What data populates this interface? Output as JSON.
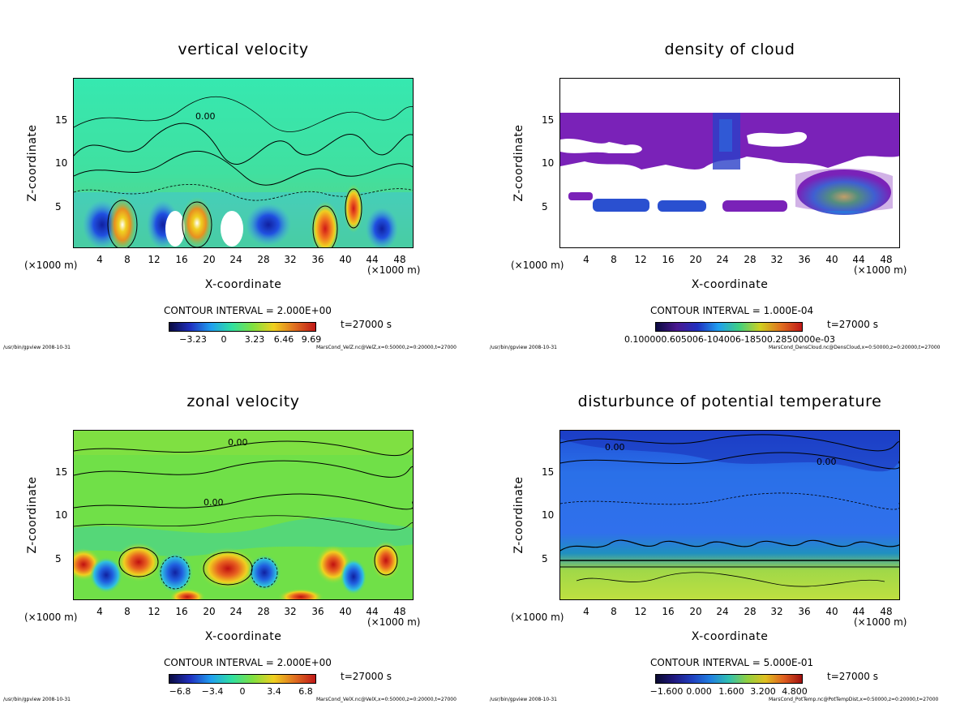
{
  "chart_data": [
    {
      "type": "heatmap",
      "title": "vertical velocity",
      "xlabel": "X-coordinate",
      "ylabel": "Z-coordinate",
      "x_unit_left": "(×1000 m)",
      "x_unit_right": "(×1000 m)",
      "xticks": [
        "4",
        "8",
        "12",
        "16",
        "20",
        "24",
        "28",
        "32",
        "36",
        "40",
        "44",
        "48"
      ],
      "yticks": [
        "5",
        "10",
        "15"
      ],
      "xlim": [
        0,
        50
      ],
      "ylim": [
        0,
        20
      ],
      "contour_interval": "CONTOUR INTERVAL = 2.000E+00",
      "colorbar_labels": [
        "−3.23",
        "0",
        "3.23",
        "6.46",
        "9.69"
      ],
      "time": "t=27000 s",
      "footer_left": "/usr/bin/gpview   2008-10-31",
      "footer_right": "MarsCond_VelZ.nc@VelZ,x=0:50000,z=0:20000,t=27000",
      "contour_label": "0.00",
      "colors": {
        "background": "#3de8a6",
        "low": "#1c2cd8",
        "high": "#e8a020"
      }
    },
    {
      "type": "heatmap",
      "title": "density of cloud",
      "xlabel": "X-coordinate",
      "ylabel": "Z-coordinate",
      "x_unit_left": "(×1000 m)",
      "x_unit_right": "(×1000 m)",
      "xticks": [
        "4",
        "8",
        "12",
        "16",
        "20",
        "24",
        "28",
        "32",
        "36",
        "40",
        "44",
        "48"
      ],
      "yticks": [
        "5",
        "10",
        "15"
      ],
      "xlim": [
        0,
        50
      ],
      "ylim": [
        0,
        20
      ],
      "contour_interval": "CONTOUR INTERVAL = 1.000E-04",
      "colorbar_labels": [
        "0.100000.605006-104006-18500.2850000e-03"
      ],
      "time": "t=27000 s",
      "footer_left": "/usr/bin/gpview   2008-10-31",
      "footer_right": "MarsCond_DensCloud.nc@DensCloud,x=0:50000,z=0:20000,t=27000",
      "colors": {
        "cloud": "#7a22b8",
        "dense": "#1a4ed8",
        "peak": "#3ecf6e"
      }
    },
    {
      "type": "heatmap",
      "title": "zonal velocity",
      "xlabel": "X-coordinate",
      "ylabel": "Z-coordinate",
      "x_unit_left": "(×1000 m)",
      "x_unit_right": "(×1000 m)",
      "xticks": [
        "4",
        "8",
        "12",
        "16",
        "20",
        "24",
        "28",
        "32",
        "36",
        "40",
        "44",
        "48"
      ],
      "yticks": [
        "5",
        "10",
        "15"
      ],
      "xlim": [
        0,
        50
      ],
      "ylim": [
        0,
        20
      ],
      "contour_interval": "CONTOUR INTERVAL = 2.000E+00",
      "colorbar_labels": [
        "−6.8",
        "−3.4",
        "0",
        "3.4",
        "6.8"
      ],
      "time": "t=27000 s",
      "footer_left": "/usr/bin/gpview   2008-10-31",
      "footer_right": "MarsCond_VelX.nc@VelX,x=0:50000,z=0:20000,t=27000",
      "contour_label": "0.00",
      "colors": {
        "background": "#72e34a",
        "low": "#1c40d8",
        "high": "#e85030"
      }
    },
    {
      "type": "heatmap",
      "title": "disturbunce of potential temperature",
      "xlabel": "X-coordinate",
      "ylabel": "Z-coordinate",
      "x_unit_left": "(×1000 m)",
      "x_unit_right": "(×1000 m)",
      "xticks": [
        "4",
        "8",
        "12",
        "16",
        "20",
        "24",
        "28",
        "32",
        "36",
        "40",
        "44",
        "48"
      ],
      "yticks": [
        "5",
        "10",
        "15"
      ],
      "xlim": [
        0,
        50
      ],
      "ylim": [
        0,
        20
      ],
      "contour_interval": "CONTOUR INTERVAL = 5.000E-01",
      "colorbar_labels": [
        "−1.600",
        "0.000",
        "1.600",
        "3.200",
        "4.800"
      ],
      "time": "t=27000 s",
      "footer_left": "/usr/bin/gpview   2008-10-31",
      "footer_right": "MarsCond_PotTemp.nc@PotTempDist,x=0:50000,z=0:20000,t=27000",
      "contour_label": "0.00",
      "colors": {
        "background": "#2a66e8",
        "low": "#1a2ec0",
        "high": "#b8e040"
      }
    }
  ]
}
